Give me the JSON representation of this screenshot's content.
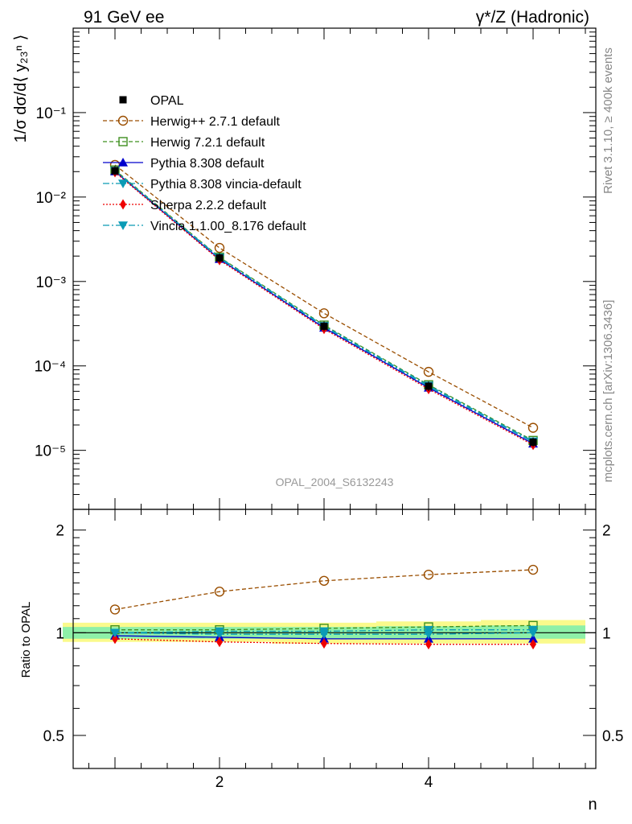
{
  "chart_data": {
    "type": "line",
    "title_left": "91 GeV ee",
    "title_right": "γ*/Z (Hadronic)",
    "ylabel_main": "1/σ dσ/d⟨ y₂₃ⁿ ⟩",
    "ylabel_ratio": "Ratio to OPAL",
    "xlabel": "n",
    "side_label_top": "Rivet 3.1.10, ≥ 400k events",
    "side_label_bottom": "mcplots.cern.ch [arXiv:1306.3436]",
    "watermark": "OPAL_2004_S6132243",
    "xlim": [
      0.6,
      5.6
    ],
    "xticks": [
      2,
      4
    ],
    "main_ylim": [
      2e-06,
      1.0
    ],
    "main_yscale": "log",
    "main_yticks": [
      {
        "value": 1e-05,
        "label": "10⁻⁵"
      },
      {
        "value": 0.0001,
        "label": "10⁻⁴"
      },
      {
        "value": 0.001,
        "label": "10⁻³"
      },
      {
        "value": 0.01,
        "label": "10⁻²"
      },
      {
        "value": 0.1,
        "label": "10⁻¹"
      }
    ],
    "ratio_ylim": [
      0.4,
      2.3
    ],
    "ratio_yscale": "log",
    "ratio_yticks": [
      {
        "value": 0.5,
        "label": "0.5"
      },
      {
        "value": 1,
        "label": "1"
      },
      {
        "value": 2,
        "label": "2"
      }
    ],
    "x": [
      1,
      2,
      3,
      4,
      5
    ],
    "reference": {
      "name": "OPAL",
      "values": [
        0.0205,
        0.0019,
        0.000295,
        5.75e-05,
        1.25e-05
      ]
    },
    "bands": {
      "inner": [
        [
          0.96,
          1.04
        ],
        [
          0.96,
          1.04
        ],
        [
          0.96,
          1.04
        ],
        [
          0.96,
          1.045
        ],
        [
          0.96,
          1.05
        ]
      ],
      "outer": [
        [
          0.94,
          1.07
        ],
        [
          0.94,
          1.07
        ],
        [
          0.93,
          1.07
        ],
        [
          0.93,
          1.08
        ],
        [
          0.93,
          1.09
        ]
      ]
    },
    "series": [
      {
        "name": "Herwig++ 2.7.1 default",
        "color": "#9a4e00",
        "dash": "5,3",
        "marker": "circle-open",
        "ratio": [
          1.17,
          1.32,
          1.42,
          1.48,
          1.53
        ],
        "values": [
          0.024,
          0.0025,
          0.00042,
          8.5e-05,
          1.85e-05
        ]
      },
      {
        "name": "Herwig 7.2.1 default",
        "color": "#3f8f1f",
        "dash": "5,3",
        "marker": "square-open",
        "ratio": [
          1.02,
          1.02,
          1.03,
          1.04,
          1.05
        ],
        "values": [
          0.0209,
          0.00194,
          0.000304,
          5.98e-05,
          1.31e-05
        ]
      },
      {
        "name": "Pythia 8.308 default",
        "color": "#0000cc",
        "dash": "",
        "marker": "triangle-up",
        "ratio": [
          0.98,
          0.97,
          0.96,
          0.96,
          0.96
        ],
        "values": [
          0.0201,
          0.00184,
          0.000283,
          5.52e-05,
          1.2e-05
        ]
      },
      {
        "name": "Pythia 8.308 vincia-default",
        "color": "#0b9bb5",
        "dash": "8,3,2,3",
        "marker": "triangle-down",
        "ratio": [
          1.0,
          0.99,
          0.99,
          0.99,
          1.0
        ],
        "values": [
          0.0205,
          0.00188,
          0.000292,
          5.69e-05,
          1.25e-05
        ]
      },
      {
        "name": "Sherpa 2.2.2 default",
        "color": "#ee0000",
        "dash": "2,2",
        "marker": "diamond",
        "ratio": [
          0.96,
          0.94,
          0.93,
          0.925,
          0.925
        ],
        "values": [
          0.0197,
          0.00179,
          0.000274,
          5.32e-05,
          1.16e-05
        ]
      },
      {
        "name": "Vincia 1.1.00_8.176 default",
        "color": "#0b9bb5",
        "dash": "8,3,2,3",
        "marker": "triangle-down",
        "ratio": [
          1.0,
          1.01,
          1.01,
          1.02,
          1.02
        ],
        "values": [
          0.0205,
          0.00192,
          0.000298,
          5.87e-05,
          1.28e-05
        ]
      }
    ]
  }
}
